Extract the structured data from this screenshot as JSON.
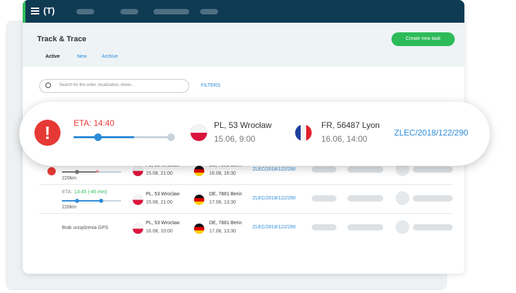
{
  "header": {
    "logo": "(T)"
  },
  "page": {
    "title": "Track & Trace",
    "button": "Create new task",
    "tabs": [
      "Active",
      "New",
      "Archive"
    ],
    "search_placeholder": "Search for the order, localization, driver...",
    "filters": "FILTERS"
  },
  "highlight": {
    "eta": "ETA: 14:40",
    "from": {
      "place": "PL, 53 Wrocław",
      "date": "15.06, 9:00"
    },
    "to": {
      "place": "FR, 56487 Lyon",
      "date": "16.06, 14:00"
    },
    "order": "ZLEC/2018/122/290"
  },
  "rows": [
    {
      "distance": "220km",
      "from": {
        "place": "PL, 53 Wroclaw",
        "date": "15.08, 21:00"
      },
      "to": {
        "place": "DE, 7881 Berin",
        "date": "16.08, 16:30"
      },
      "order": "ZLEC/2018/122/290"
    },
    {
      "eta_label": "ETA:",
      "eta_value": "13:45 (-45 min)",
      "distance": "220km",
      "from": {
        "place": "PL, 53 Wroclaw",
        "date": "15.08, 21:00"
      },
      "to": {
        "place": "DE, 7881 Berin",
        "date": "17.08, 13:30"
      },
      "order": "ZLEC/2018/122/290"
    },
    {
      "status": "Brak urządzenia GPS",
      "from": {
        "place": "PL, 53 Wroclaw",
        "date": "16.08, 10:00"
      },
      "to": {
        "place": "DE, 7881 Berin",
        "date": "17.08, 13:30"
      },
      "order": "ZLEC/2018/122/290"
    }
  ]
}
